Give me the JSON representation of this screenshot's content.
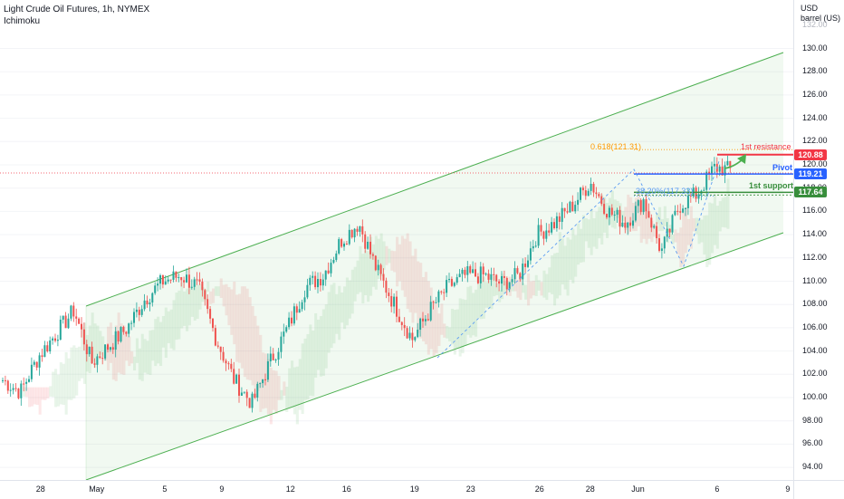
{
  "legend": {
    "title": "Light Crude Oil Futures, 1h, NYMEX",
    "indicator": "Ichimoku"
  },
  "price_axis": {
    "currency": "USD",
    "unit": "barrel (US)",
    "labels": [
      "130.00",
      "128.00",
      "126.00",
      "124.00",
      "122.00",
      "120.00",
      "118.00",
      "116.00",
      "114.00",
      "112.00",
      "110.00",
      "108.00",
      "106.00",
      "104.00",
      "102.00",
      "100.00",
      "98.00",
      "96.00",
      "94.00"
    ],
    "top_partial": "132.00"
  },
  "time_axis": {
    "labels": [
      "28",
      "May",
      "5",
      "9",
      "12",
      "16",
      "19",
      "23",
      "26",
      "28",
      "Jun",
      "6",
      "9"
    ]
  },
  "price_tags": {
    "resistance": "120.88",
    "pivot": "119.21",
    "support": "117.64"
  },
  "annotations": {
    "fib_upper": "0.618(121.31)",
    "fib_lower": "38.20%(117.33)",
    "resistance_label": "1st resistance",
    "pivot_label": "Pivot",
    "support_label": "1st support"
  },
  "colors": {
    "up": "#26a69a",
    "down": "#ef5350",
    "channel": "#4caf50",
    "resistance": "#f23645",
    "pivot": "#2962ff",
    "support": "#388e3c",
    "fib": "#ff9800"
  },
  "chart_data": {
    "type": "candlestick",
    "symbol": "Light Crude Oil Futures",
    "interval": "1h",
    "exchange": "NYMEX",
    "ylim": [
      92.5,
      133
    ],
    "series": [
      {
        "kind": "approx_close_path",
        "points": [
          [
            "Apr 27",
            101.5
          ],
          [
            "Apr 28",
            100.5
          ],
          [
            "Apr 29",
            103.5
          ],
          [
            "Apr 30",
            105.5
          ],
          [
            "May 1",
            107.5
          ],
          [
            "May 2",
            103.0
          ],
          [
            "May 3",
            104.5
          ],
          [
            "May 4",
            106.0
          ],
          [
            "May 5",
            108.5
          ],
          [
            "May 6",
            110.0
          ],
          [
            "May 7",
            110.5
          ],
          [
            "May 8",
            109.5
          ],
          [
            "May 9",
            105.0
          ],
          [
            "May 10",
            101.5
          ],
          [
            "May 11",
            99.5
          ],
          [
            "May 12",
            103.0
          ],
          [
            "May 13",
            106.0
          ],
          [
            "May 14",
            109.5
          ],
          [
            "May 15",
            110.5
          ],
          [
            "May 16",
            113.5
          ],
          [
            "May 17",
            115.0
          ],
          [
            "May 18",
            111.0
          ],
          [
            "May 19",
            108.0
          ],
          [
            "May 20",
            105.0
          ],
          [
            "May 21",
            107.5
          ],
          [
            "May 22",
            109.5
          ],
          [
            "May 23",
            110.5
          ],
          [
            "May 24",
            110.5
          ],
          [
            "May 25",
            109.8
          ],
          [
            "May 26",
            110.5
          ],
          [
            "May 27",
            114.0
          ],
          [
            "May 28",
            115.0
          ],
          [
            "May 29",
            116.5
          ],
          [
            "May 30",
            118.5
          ],
          [
            "May 31",
            116.0
          ],
          [
            "Jun 1",
            115.0
          ],
          [
            "Jun 2",
            117.0
          ],
          [
            "Jun 3",
            112.5
          ],
          [
            "Jun 4",
            116.5
          ],
          [
            "Jun 5",
            117.5
          ],
          [
            "Jun 6",
            119.8
          ],
          [
            "Jun 7",
            119.5
          ]
        ]
      }
    ],
    "levels": [
      {
        "name": "1st resistance",
        "value": 120.88
      },
      {
        "name": "Pivot",
        "value": 119.21
      },
      {
        "name": "1st support",
        "value": 117.64
      }
    ],
    "fibonacci": [
      {
        "label": "0.618(121.31)",
        "value": 121.31
      },
      {
        "label": "38.20%(117.33)",
        "value": 117.33
      }
    ],
    "channel": "ascending parallel channel",
    "indicator": "Ichimoku cloud"
  }
}
